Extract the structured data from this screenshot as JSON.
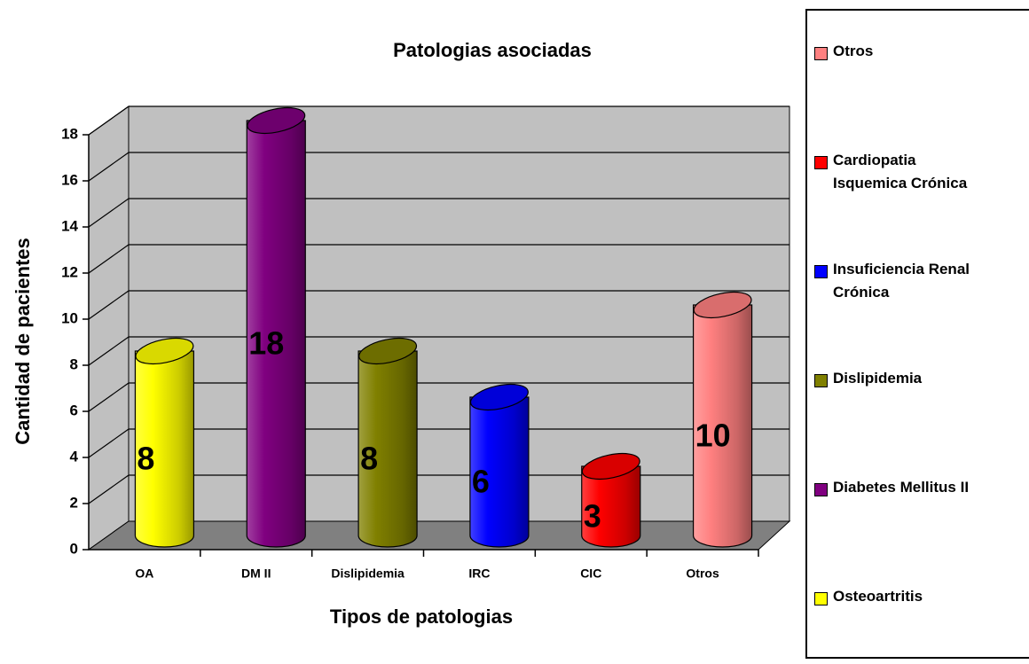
{
  "chart_data": {
    "type": "bar",
    "title": "Patologias asociadas",
    "xlabel": "Tipos de patologias",
    "ylabel": "Cantidad de pacientes",
    "categories": [
      "OA",
      "DM II",
      "Dislipidemia",
      "IRC",
      "CIC",
      "Otros"
    ],
    "values": [
      8,
      18,
      8,
      6,
      3,
      10
    ],
    "colors": [
      "#ffff00",
      "#800080",
      "#808000",
      "#0000ff",
      "#ff0000",
      "#ff8080"
    ],
    "legend": [
      "Osteoartritis",
      "Diabetes Mellitus II",
      "Dislipidemia",
      "Insuficiencia Renal Crónica",
      "Cardiopatia Isquemica Crónica",
      "Otros"
    ],
    "legend_position": "right",
    "ylim": [
      0,
      18
    ],
    "yticks": [
      0,
      2,
      4,
      6,
      8,
      10,
      12,
      14,
      16,
      18
    ],
    "grid": true
  }
}
